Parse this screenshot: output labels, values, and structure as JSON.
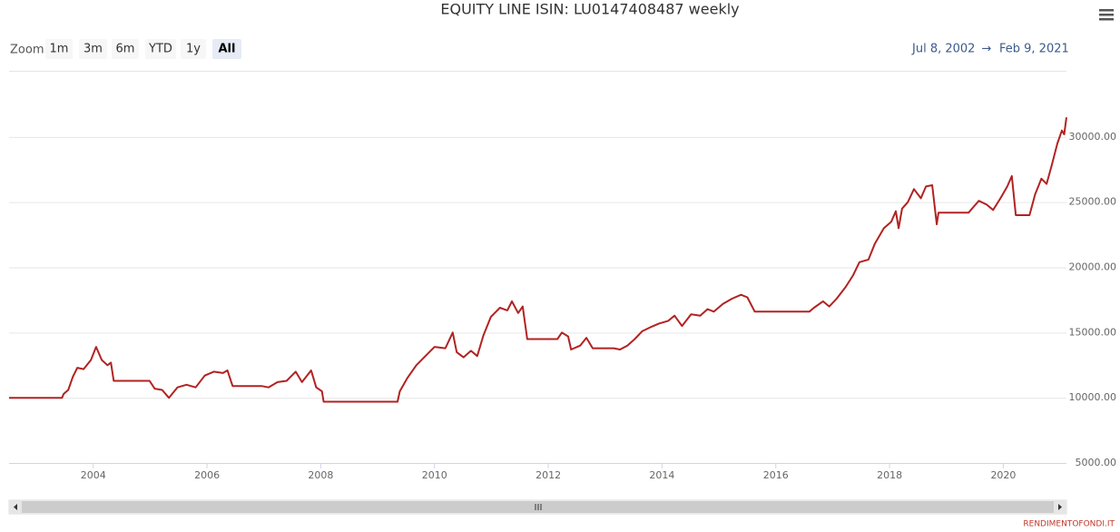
{
  "chart_data": {
    "type": "line",
    "title": "EQUITY LINE ISIN: LU0147408487 weekly",
    "range_selector": {
      "label": "Zoom",
      "buttons": [
        "1m",
        "3m",
        "6m",
        "YTD",
        "1y",
        "All"
      ],
      "selected": 5,
      "from": "Jul 8, 2002",
      "arrow": "→",
      "to": "Feb 9, 2021"
    },
    "credit": "RENDIMENTOFONDI.IT",
    "color": "#b22222",
    "grid": true,
    "xlim": [
      2002.52,
      2021.11
    ],
    "xticks": [
      2004,
      2006,
      2008,
      2010,
      2012,
      2014,
      2016,
      2018,
      2020
    ],
    "ylim": [
      5000,
      35000
    ],
    "yticks": [
      {
        "value": 5000,
        "label": "5000.00"
      },
      {
        "value": 10000,
        "label": "10000.00"
      },
      {
        "value": 15000,
        "label": "15000.00"
      },
      {
        "value": 20000,
        "label": "20000.00"
      },
      {
        "value": 25000,
        "label": "25000.00"
      },
      {
        "value": 30000,
        "label": "30000.00"
      }
    ],
    "x": [
      2002.52,
      2003.45,
      2003.48,
      2003.56,
      2003.64,
      2003.72,
      2003.83,
      2003.96,
      2004.05,
      2004.15,
      2004.25,
      2004.31,
      2004.36,
      2004.99,
      2005.08,
      2005.21,
      2005.33,
      2005.48,
      2005.64,
      2005.8,
      2005.96,
      2006.12,
      2006.28,
      2006.36,
      2006.45,
      2006.96,
      2007.08,
      2007.24,
      2007.4,
      2007.56,
      2007.67,
      2007.83,
      2007.92,
      2008.02,
      2008.05,
      2009.35,
      2009.39,
      2009.52,
      2009.68,
      2009.84,
      2010.0,
      2010.19,
      2010.32,
      2010.39,
      2010.51,
      2010.64,
      2010.75,
      2010.86,
      2010.99,
      2011.15,
      2011.28,
      2011.36,
      2011.47,
      2011.55,
      2011.63,
      2012.16,
      2012.24,
      2012.35,
      2012.4,
      2012.56,
      2012.67,
      2012.78,
      2013.15,
      2013.26,
      2013.39,
      2013.52,
      2013.65,
      2013.79,
      2013.95,
      2014.11,
      2014.22,
      2014.35,
      2014.51,
      2014.67,
      2014.8,
      2014.91,
      2015.07,
      2015.23,
      2015.39,
      2015.5,
      2015.63,
      2016.59,
      2016.67,
      2016.83,
      2016.94,
      2017.07,
      2017.23,
      2017.36,
      2017.47,
      2017.63,
      2017.74,
      2017.9,
      2018.03,
      2018.11,
      2018.16,
      2018.22,
      2018.32,
      2018.43,
      2018.55,
      2018.64,
      2018.75,
      2018.83,
      2018.86,
      2019.39,
      2019.47,
      2019.57,
      2019.71,
      2019.82,
      2019.95,
      2020.07,
      2020.15,
      2020.22,
      2020.46,
      2020.56,
      2020.67,
      2020.76,
      2020.85,
      2020.95,
      2021.03,
      2021.07,
      2021.11
    ],
    "values": [
      10000,
      10000,
      10300,
      10600,
      11600,
      12300,
      12200,
      12900,
      13900,
      12900,
      12500,
      12700,
      11300,
      11300,
      10700,
      10600,
      10000,
      10800,
      11000,
      10800,
      11700,
      12000,
      11900,
      12100,
      10900,
      10900,
      10800,
      11200,
      11300,
      12000,
      11200,
      12100,
      10800,
      10500,
      9700,
      9700,
      10500,
      11500,
      12500,
      13200,
      13900,
      13800,
      15000,
      13500,
      13100,
      13600,
      13200,
      14800,
      16200,
      16900,
      16700,
      17400,
      16500,
      17000,
      14500,
      14500,
      15000,
      14700,
      13700,
      14000,
      14600,
      13800,
      13800,
      13700,
      14000,
      14500,
      15100,
      15400,
      15700,
      15900,
      16300,
      15500,
      16400,
      16300,
      16800,
      16600,
      17200,
      17600,
      17900,
      17700,
      16600,
      16600,
      16900,
      17400,
      17000,
      17600,
      18500,
      19400,
      20400,
      20600,
      21800,
      23000,
      23500,
      24300,
      23000,
      24500,
      25000,
      26000,
      25300,
      26200,
      26300,
      23300,
      24200,
      24200,
      24600,
      25100,
      24800,
      24400,
      25300,
      26200,
      27000,
      24000,
      24000,
      25600,
      26800,
      26400,
      27800,
      29500,
      30500,
      30200,
      31500
    ]
  }
}
